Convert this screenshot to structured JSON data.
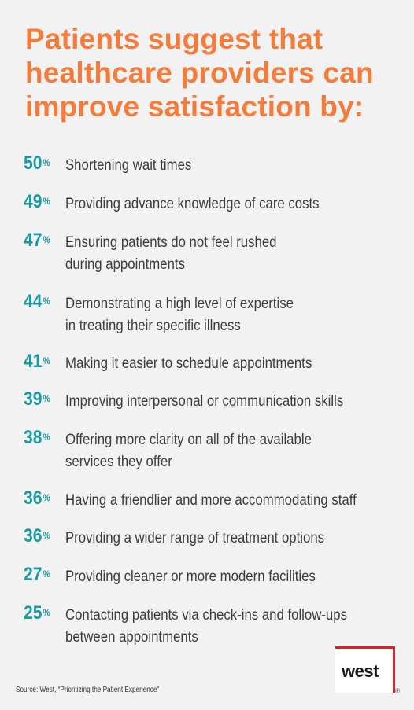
{
  "title": "Patients suggest that healthcare providers can improve satisfaction by:",
  "source": "Source: West, “Prioritizing the Patient Experience”",
  "logo": {
    "text": "west",
    "reg_mark": "®"
  },
  "colors": {
    "title": "#f47b3a",
    "percent": "#199aa2",
    "text": "#3c3c3c",
    "logo_accent": "#e11d2a"
  },
  "chart_data": {
    "type": "table",
    "unit": "%",
    "items": [
      {
        "value": 50,
        "label_lines": [
          "Shortening wait times"
        ]
      },
      {
        "value": 49,
        "label_lines": [
          "Providing advance knowledge of care costs"
        ]
      },
      {
        "value": 47,
        "label_lines": [
          "Ensuring patients do not feel rushed",
          "during appointments"
        ]
      },
      {
        "value": 44,
        "label_lines": [
          "Demonstrating a high level of expertise",
          "in treating their specific illness"
        ]
      },
      {
        "value": 41,
        "label_lines": [
          "Making it easier to schedule appointments"
        ]
      },
      {
        "value": 39,
        "label_lines": [
          "Improving interpersonal or communication skills"
        ]
      },
      {
        "value": 38,
        "label_lines": [
          "Offering more clarity on all of the available",
          "services they offer"
        ]
      },
      {
        "value": 36,
        "label_lines": [
          "Having a friendlier and more accommodating staff"
        ]
      },
      {
        "value": 36,
        "label_lines": [
          "Providing a wider range of treatment options"
        ]
      },
      {
        "value": 27,
        "label_lines": [
          "Providing cleaner or more modern facilities"
        ]
      },
      {
        "value": 25,
        "label_lines": [
          "Contacting patients via check-ins and follow-ups",
          "between appointments"
        ]
      }
    ]
  }
}
